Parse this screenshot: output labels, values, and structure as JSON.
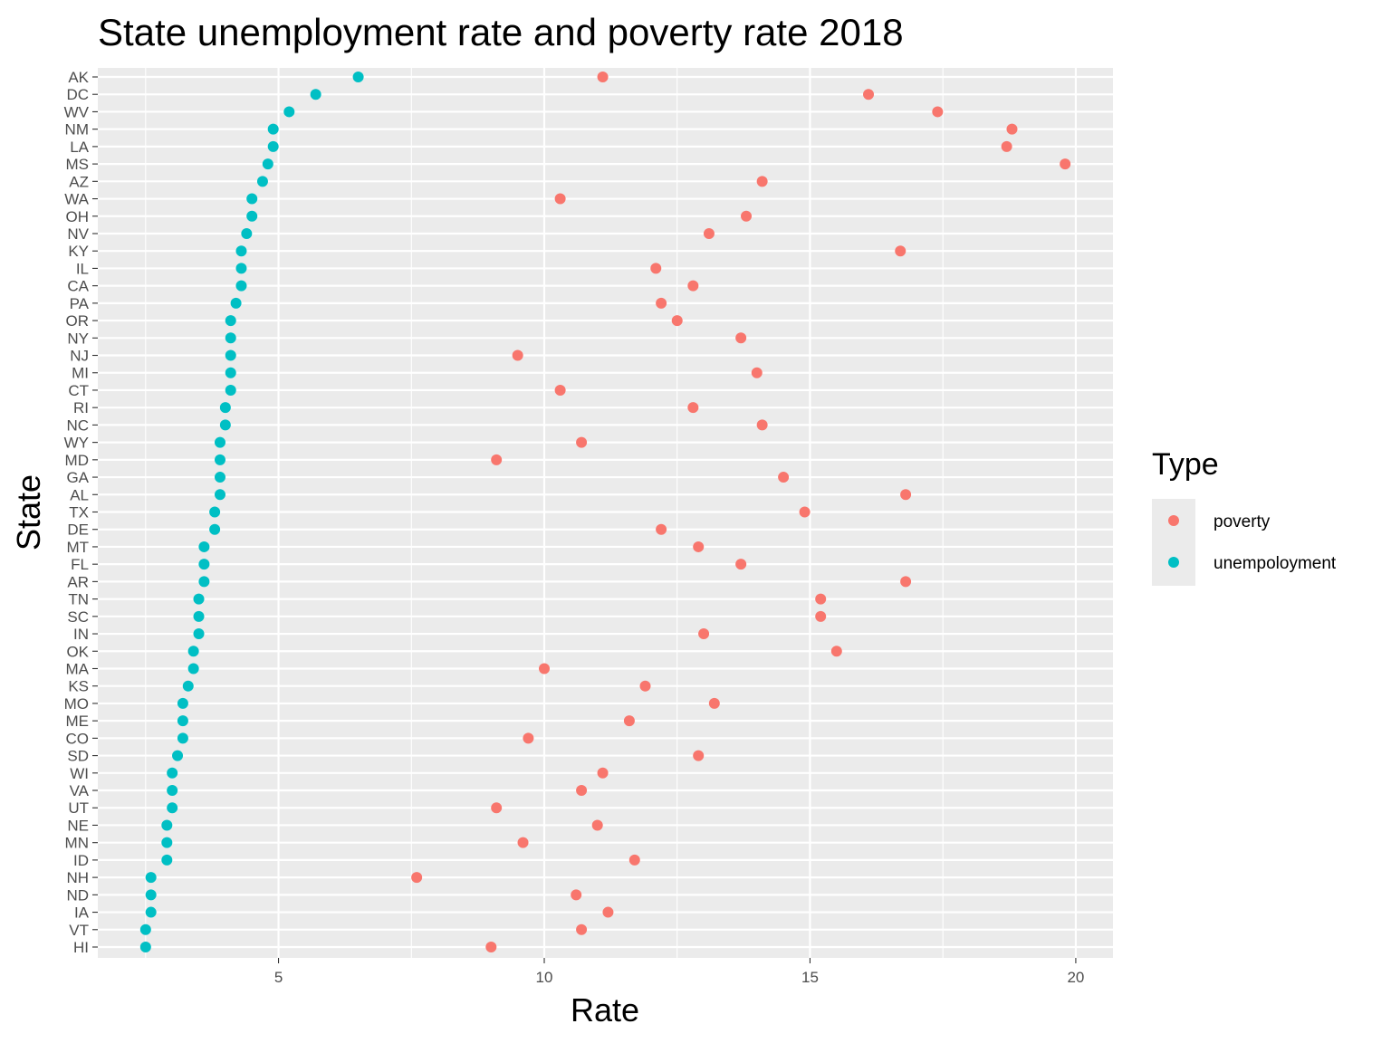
{
  "chart_data": {
    "type": "scatter",
    "title": "State unemployment rate and poverty rate 2018",
    "xlabel": "Rate",
    "ylabel": "State",
    "xlim": [
      1.6,
      20.7
    ],
    "xticks": [
      5,
      10,
      15,
      20
    ],
    "grid": true,
    "legend": {
      "title": "Type",
      "position": "right",
      "entries": [
        {
          "key": "poverty",
          "label": "poverty",
          "color": "#F8766D"
        },
        {
          "key": "unemployment",
          "label": "unempoloyment",
          "color": "#00BFC4"
        }
      ]
    },
    "categories": [
      "AK",
      "DC",
      "WV",
      "NM",
      "LA",
      "MS",
      "AZ",
      "WA",
      "OH",
      "NV",
      "KY",
      "IL",
      "CA",
      "PA",
      "OR",
      "NY",
      "NJ",
      "MI",
      "CT",
      "RI",
      "NC",
      "WY",
      "MD",
      "GA",
      "AL",
      "TX",
      "DE",
      "MT",
      "FL",
      "AR",
      "TN",
      "SC",
      "IN",
      "OK",
      "MA",
      "KS",
      "MO",
      "ME",
      "CO",
      "SD",
      "WI",
      "VA",
      "UT",
      "NE",
      "MN",
      "ID",
      "NH",
      "ND",
      "IA",
      "VT",
      "HI"
    ],
    "series": [
      {
        "name": "poverty",
        "color": "#F8766D",
        "values": [
          11.1,
          16.1,
          17.4,
          18.8,
          18.7,
          19.8,
          14.1,
          10.3,
          13.8,
          13.1,
          16.7,
          12.1,
          12.8,
          12.2,
          12.5,
          13.7,
          9.5,
          14.0,
          10.3,
          12.8,
          14.1,
          10.7,
          9.1,
          14.5,
          16.8,
          14.9,
          12.2,
          12.9,
          13.7,
          16.8,
          15.2,
          15.2,
          13.0,
          15.5,
          10.0,
          11.9,
          13.2,
          11.6,
          9.7,
          12.9,
          11.1,
          10.7,
          9.1,
          11.0,
          9.6,
          11.7,
          7.6,
          10.6,
          11.2,
          10.7,
          9.0
        ]
      },
      {
        "name": "unempoloyment",
        "color": "#00BFC4",
        "values": [
          6.5,
          5.7,
          5.2,
          4.9,
          4.9,
          4.8,
          4.7,
          4.5,
          4.5,
          4.4,
          4.3,
          4.3,
          4.3,
          4.2,
          4.1,
          4.1,
          4.1,
          4.1,
          4.1,
          4.0,
          4.0,
          3.9,
          3.9,
          3.9,
          3.9,
          3.8,
          3.8,
          3.6,
          3.6,
          3.6,
          3.5,
          3.5,
          3.5,
          3.4,
          3.4,
          3.3,
          3.2,
          3.2,
          3.2,
          3.1,
          3.0,
          3.0,
          3.0,
          2.9,
          2.9,
          2.9,
          2.6,
          2.6,
          2.6,
          2.5,
          2.5
        ]
      }
    ]
  }
}
